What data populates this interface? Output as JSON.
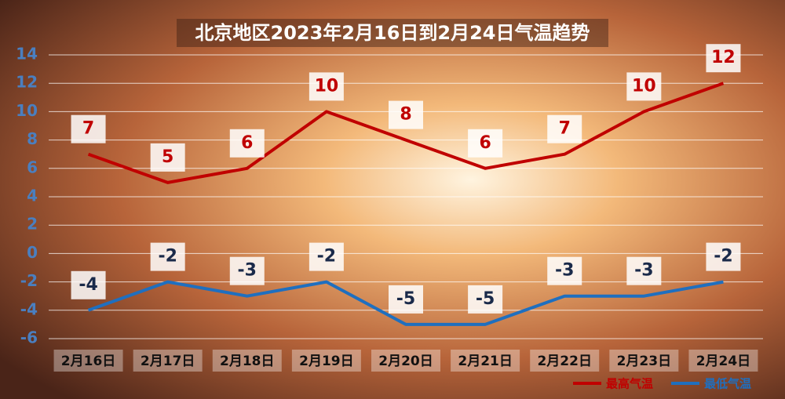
{
  "chart_data": {
    "type": "line",
    "title": "北京地区2023年2月16日到2月24日气温趋势",
    "categories": [
      "2月16日",
      "2月17日",
      "2月18日",
      "2月19日",
      "2月20日",
      "2月21日",
      "2月22日",
      "2月23日",
      "2月24日"
    ],
    "series": [
      {
        "name": "最高气温",
        "color": "#c00000",
        "values": [
          7,
          5,
          6,
          10,
          8,
          6,
          7,
          10,
          12
        ]
      },
      {
        "name": "最低气温",
        "color": "#1f6fbf",
        "values": [
          -4,
          -2,
          -3,
          -2,
          -5,
          -5,
          -3,
          -3,
          -2
        ]
      }
    ],
    "ylim": [
      -6,
      14
    ],
    "yticks": [
      -6,
      -4,
      -2,
      0,
      2,
      4,
      6,
      8,
      10,
      12,
      14
    ],
    "grid": true,
    "legend": "bottom-right"
  }
}
